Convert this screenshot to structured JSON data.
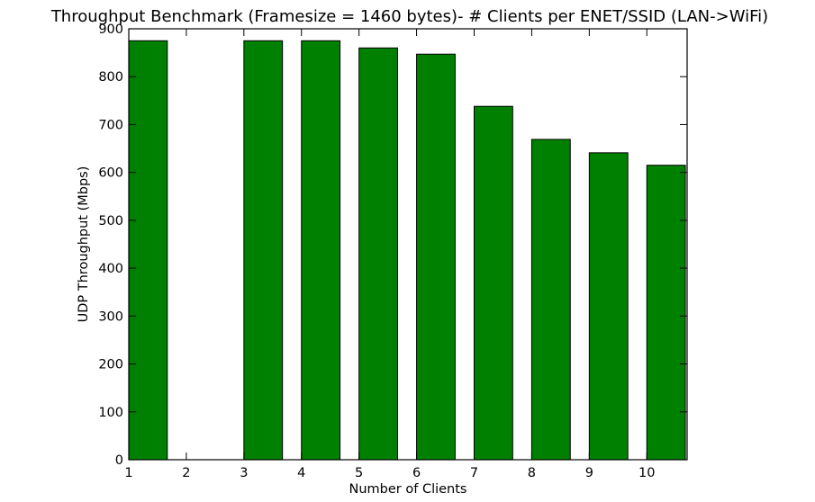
{
  "chart_data": {
    "type": "bar",
    "title": "Throughput Benchmark (Framesize = 1460 bytes)- # Clients per ENET/SSID (LAN->WiFi)",
    "xlabel": "Number of Clients",
    "ylabel": "UDP Throughput (Mbps)",
    "x": [
      1,
      2,
      3,
      4,
      5,
      6,
      7,
      8,
      9,
      10
    ],
    "values": [
      875,
      0,
      875,
      875,
      860,
      847,
      738,
      669,
      641,
      615
    ],
    "bar_width": 0.67,
    "xlim": [
      1,
      10.7
    ],
    "ylim": [
      0,
      900
    ],
    "xticks": [
      1,
      2,
      3,
      4,
      5,
      6,
      7,
      8,
      9,
      10
    ],
    "yticks": [
      0,
      100,
      200,
      300,
      400,
      500,
      600,
      700,
      800,
      900
    ],
    "bar_color": "#008000",
    "grid": false,
    "legend": "none"
  }
}
